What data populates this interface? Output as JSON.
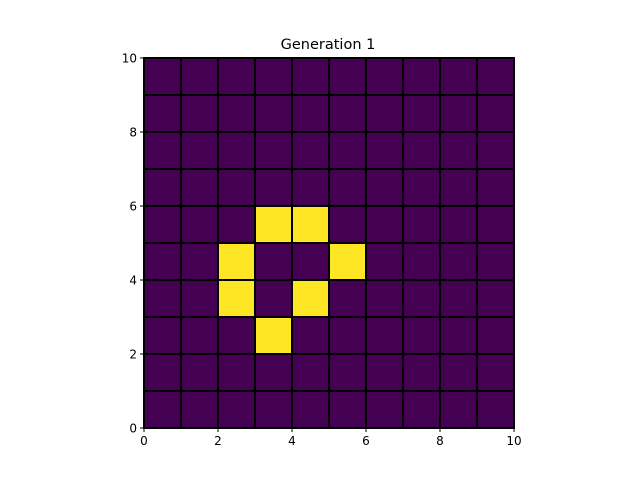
{
  "chart_data": {
    "type": "heatmap",
    "title": "Generation 1",
    "xlabel": "",
    "ylabel": "",
    "xlim": [
      0,
      10
    ],
    "ylim": [
      0,
      10
    ],
    "x_ticks": [
      0,
      2,
      4,
      6,
      8,
      10
    ],
    "y_ticks": [
      0,
      2,
      4,
      6,
      8,
      10
    ],
    "grid": false,
    "cell_edge_color": "#000000",
    "colors": {
      "dead": "#440154",
      "alive": "#fde725"
    },
    "rows_top_to_bottom": [
      [
        0,
        0,
        0,
        0,
        0,
        0,
        0,
        0,
        0,
        0
      ],
      [
        0,
        0,
        0,
        0,
        0,
        0,
        0,
        0,
        0,
        0
      ],
      [
        0,
        0,
        0,
        0,
        0,
        0,
        0,
        0,
        0,
        0
      ],
      [
        0,
        0,
        0,
        0,
        0,
        0,
        0,
        0,
        0,
        0
      ],
      [
        0,
        0,
        0,
        1,
        1,
        0,
        0,
        0,
        0,
        0
      ],
      [
        0,
        0,
        1,
        0,
        0,
        1,
        0,
        0,
        0,
        0
      ],
      [
        0,
        0,
        1,
        0,
        1,
        0,
        0,
        0,
        0,
        0
      ],
      [
        0,
        0,
        0,
        1,
        0,
        0,
        0,
        0,
        0,
        0
      ],
      [
        0,
        0,
        0,
        0,
        0,
        0,
        0,
        0,
        0,
        0
      ],
      [
        0,
        0,
        0,
        0,
        0,
        0,
        0,
        0,
        0,
        0
      ]
    ]
  }
}
